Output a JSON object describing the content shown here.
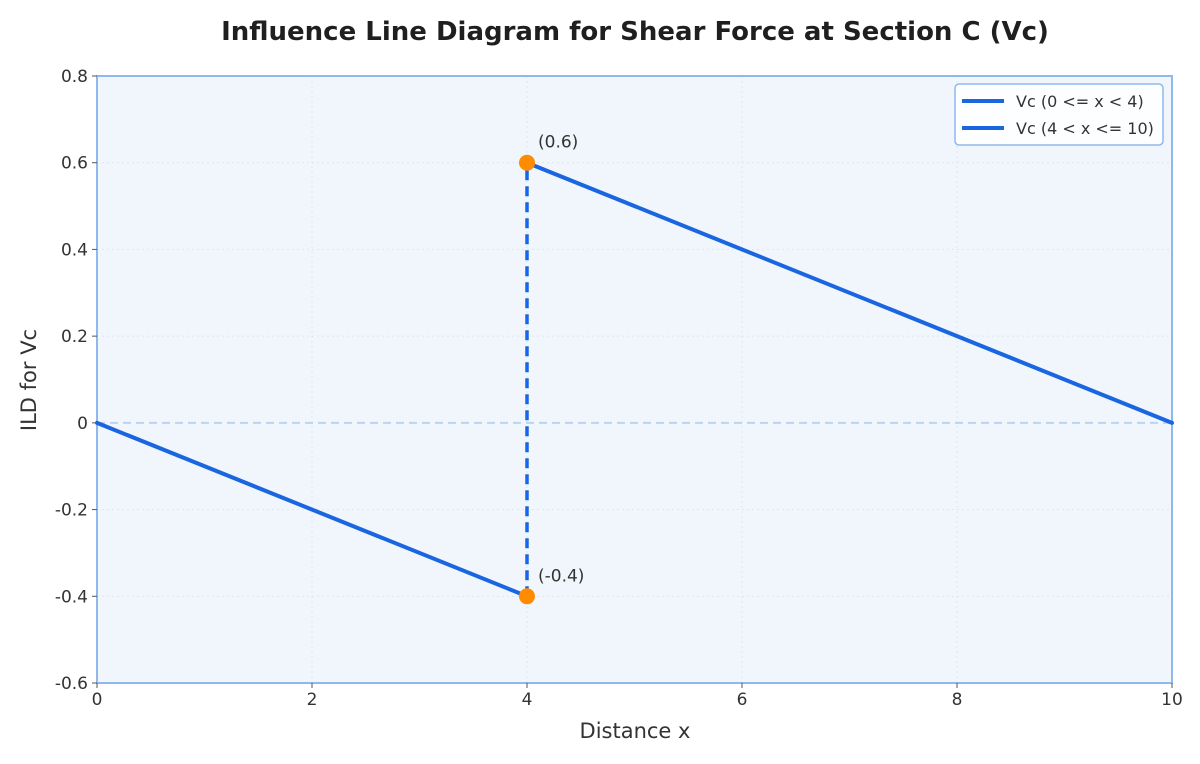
{
  "colors": {
    "line": "#1a66e0",
    "marker": "#ff8c00",
    "plot_bg": "#f1f6fd",
    "frame": "#8fb8ec",
    "zero_line": "#b9d3f3",
    "grid": "#dbe6f5",
    "text": "#333333",
    "title": "#1f1f1f"
  },
  "chart_data": {
    "type": "line",
    "title": "Influence Line Diagram for Shear Force at Section C (Vc)",
    "xlabel": "Distance x",
    "ylabel": "ILD for Vc",
    "xlim": [
      0,
      10
    ],
    "ylim": [
      -0.6,
      0.8
    ],
    "xticks": [
      0,
      2,
      4,
      6,
      8,
      10
    ],
    "yticks": [
      -0.6,
      -0.4,
      -0.2,
      0,
      0.2,
      0.4,
      0.6,
      0.8
    ],
    "xtick_labels": [
      "0",
      "2",
      "4",
      "6",
      "8",
      "10"
    ],
    "ytick_labels": [
      "-0.6",
      "-0.4",
      "-0.2",
      "0",
      "0.2",
      "0.4",
      "0.6",
      "0.8"
    ],
    "grid": true,
    "legend_position": "top-right",
    "series": [
      {
        "name": "Vc (0 <= x < 4)",
        "x": [
          0,
          4
        ],
        "y": [
          0,
          -0.4
        ]
      },
      {
        "name": "Vc (4 < x <= 10)",
        "x": [
          4,
          10
        ],
        "y": [
          0.6,
          0
        ]
      }
    ],
    "jump": {
      "x": 4,
      "y_from": -0.4,
      "y_to": 0.6,
      "style": "dashed"
    },
    "zero_reference": {
      "y": 0,
      "style": "dashed"
    },
    "annotations": [
      {
        "x": 4,
        "y": 0.6,
        "text": "(0.6)"
      },
      {
        "x": 4,
        "y": -0.4,
        "text": "(-0.4)"
      }
    ]
  }
}
